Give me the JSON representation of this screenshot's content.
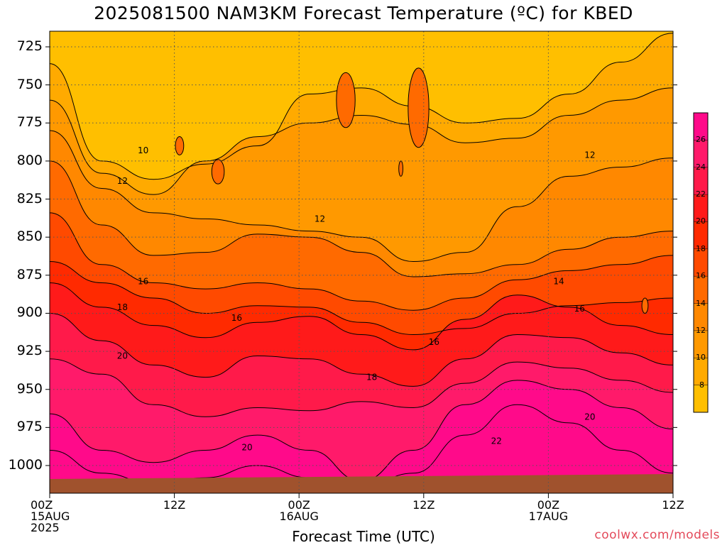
{
  "title": "2025081500 NAM3KM Forecast Temperature (ºC) for KBED",
  "xlabel": "Forecast Time (UTC)",
  "credit": "coolwx.com/models",
  "colors": {
    "ground": "#a0522d",
    "line": "#000000",
    "fills": [
      "#ffbf00",
      "#ffaa00",
      "#ff9900",
      "#ff8800",
      "#ff6a00",
      "#ff4a00",
      "#ff2a00",
      "#ff1a1a",
      "#ff1a4a",
      "#ff1a6a",
      "#ff0a8a"
    ]
  },
  "chart_data": {
    "type": "heatmap",
    "title": "2025081500 NAM3KM Forecast Temperature (ºC) for KBED",
    "xlabel": "Forecast Time (UTC)",
    "ylabel": "",
    "x_ticks": [
      {
        "hour": 0,
        "lines": [
          "00Z",
          "15AUG",
          "2025"
        ]
      },
      {
        "hour": 12,
        "lines": [
          "12Z"
        ]
      },
      {
        "hour": 24,
        "lines": [
          "00Z",
          "16AUG"
        ]
      },
      {
        "hour": 36,
        "lines": [
          "12Z"
        ]
      },
      {
        "hour": 48,
        "lines": [
          "00Z",
          "17AUG"
        ]
      },
      {
        "hour": 60,
        "lines": [
          "12Z"
        ]
      }
    ],
    "xlim": [
      0,
      60
    ],
    "y_ticks": [
      725,
      750,
      775,
      800,
      825,
      850,
      875,
      900,
      925,
      950,
      975,
      1000
    ],
    "ylim": [
      1015,
      713
    ],
    "grid": true,
    "colorbar": {
      "ticks": [
        8,
        10,
        12,
        14,
        16,
        18,
        20,
        22,
        24,
        26
      ],
      "range": [
        6,
        28
      ],
      "placement": "right"
    },
    "contour_labels": [
      {
        "text": "10",
        "hour": 9.0,
        "p": 793
      },
      {
        "text": "12",
        "hour": 7.0,
        "p": 813
      },
      {
        "text": "12",
        "hour": 26.0,
        "p": 838
      },
      {
        "text": "12",
        "hour": 52.0,
        "p": 796
      },
      {
        "text": "14",
        "hour": 49.0,
        "p": 879
      },
      {
        "text": "16",
        "hour": 9.0,
        "p": 879
      },
      {
        "text": "16",
        "hour": 18.0,
        "p": 903
      },
      {
        "text": "16",
        "hour": 37.0,
        "p": 919
      },
      {
        "text": "16",
        "hour": 51.0,
        "p": 897
      },
      {
        "text": "18",
        "hour": 7.0,
        "p": 896
      },
      {
        "text": "18",
        "hour": 31.0,
        "p": 942
      },
      {
        "text": "20",
        "hour": 7.0,
        "p": 928
      },
      {
        "text": "20",
        "hour": 19.0,
        "p": 988
      },
      {
        "text": "20",
        "hour": 52.0,
        "p": 968
      },
      {
        "text": "22",
        "hour": 43.0,
        "p": 984
      }
    ]
  }
}
